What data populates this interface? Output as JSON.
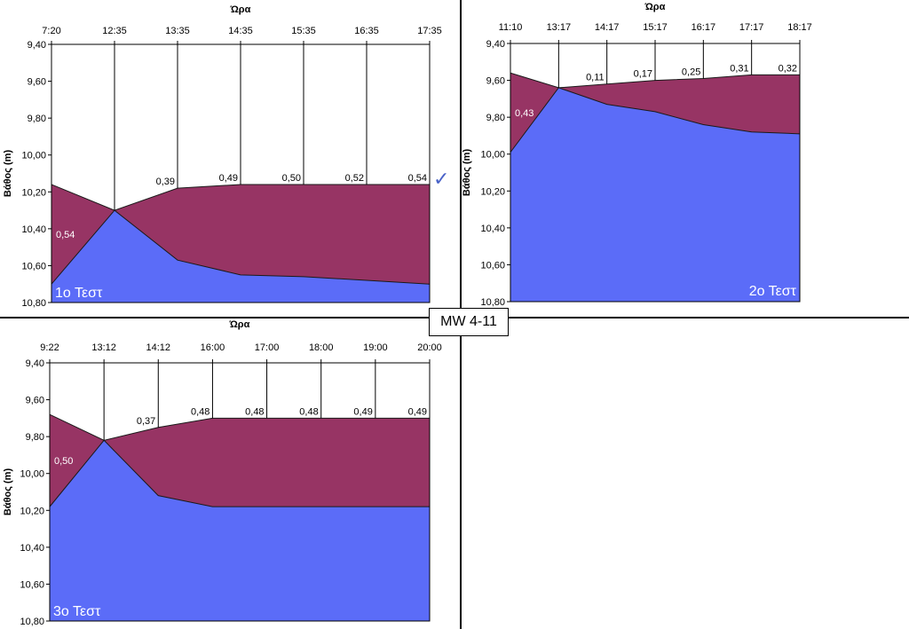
{
  "label_box": "MW 4-11",
  "checkmark": "✓",
  "colors": {
    "lower": "#5b6cf8",
    "upper": "#973464",
    "frame": "#000000"
  },
  "chart_data": [
    {
      "type": "area",
      "title": "1ο Τεστ",
      "xlabel": "Ώρα",
      "ylabel": "Βάθος (m)",
      "ylim": [
        9.4,
        10.8
      ],
      "y_inverted": true,
      "yticks": [
        "9,40",
        "9,60",
        "9,80",
        "10,00",
        "10,20",
        "10,40",
        "10,60",
        "10,80"
      ],
      "x": [
        "7:20",
        "12:35",
        "13:35",
        "14:35",
        "15:35",
        "16:35",
        "17:35"
      ],
      "series": [
        {
          "values": [
            10.16,
            10.3,
            10.18,
            10.16,
            10.16,
            10.16,
            10.16
          ]
        },
        {
          "values": [
            10.7,
            10.3,
            10.57,
            10.65,
            10.66,
            10.68,
            10.7
          ]
        }
      ],
      "annotations": [
        "0,54",
        "",
        "0,39",
        "0,49",
        "0,50",
        "0,52",
        "0,54"
      ]
    },
    {
      "type": "area",
      "title": "2ο Τεστ",
      "xlabel": "Ώρα",
      "ylabel": "Βάθος (m)",
      "ylim": [
        9.4,
        10.8
      ],
      "y_inverted": true,
      "yticks": [
        "9,40",
        "9,60",
        "9,80",
        "10,00",
        "10,20",
        "10,40",
        "10,60",
        "10,80"
      ],
      "x": [
        "11:10",
        "13:17",
        "14:17",
        "15:17",
        "16:17",
        "17:17",
        "18:17"
      ],
      "series": [
        {
          "values": [
            9.56,
            9.64,
            9.62,
            9.6,
            9.59,
            9.57,
            9.57
          ]
        },
        {
          "values": [
            9.99,
            9.64,
            9.73,
            9.77,
            9.84,
            9.88,
            9.89
          ]
        }
      ],
      "annotations": [
        "0,43",
        "",
        "0,11",
        "0,17",
        "0,25",
        "0,31",
        "0,32"
      ]
    },
    {
      "type": "area",
      "title": "3ο Τεστ",
      "xlabel": "Ώρα",
      "ylabel": "Βάθος (m)",
      "ylim": [
        9.4,
        10.8
      ],
      "y_inverted": true,
      "yticks": [
        "9,40",
        "9,60",
        "9,80",
        "10,00",
        "10,20",
        "10,40",
        "10,60",
        "10,80"
      ],
      "x": [
        "9:22",
        "13:12",
        "14:12",
        "16:00",
        "17:00",
        "18:00",
        "19:00",
        "20:00"
      ],
      "series": [
        {
          "values": [
            9.68,
            9.82,
            9.75,
            9.7,
            9.7,
            9.7,
            9.7,
            9.7
          ]
        },
        {
          "values": [
            10.18,
            9.82,
            10.12,
            10.18,
            10.18,
            10.18,
            10.18,
            10.18
          ]
        }
      ],
      "annotations": [
        "0,50",
        "",
        "0,37",
        "0,48",
        "0,48",
        "0,48",
        "0,49",
        "0,49"
      ]
    }
  ]
}
